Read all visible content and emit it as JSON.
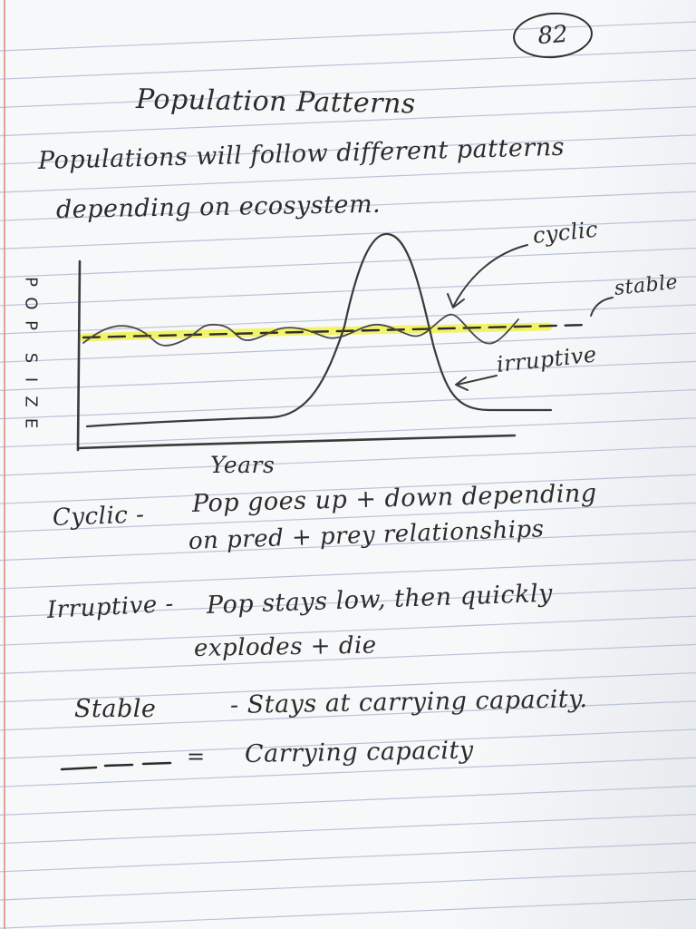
{
  "page_number": "82",
  "title": "Population Patterns",
  "intro": {
    "line1": "Populations will follow different patterns",
    "line2": "depending on ecosystem."
  },
  "graph": {
    "y_axis_letters": [
      "P",
      "O",
      "P",
      "S",
      "I",
      "Z",
      "E"
    ],
    "x_axis_label": "Years",
    "labels": {
      "cyclic": "cyclic",
      "stable": "stable",
      "irruptive": "irruptive"
    },
    "colors": {
      "highlighter": "#f2f25a",
      "ink": "#3a3a3a"
    }
  },
  "definitions": {
    "cyclic": {
      "term": "Cyclic -",
      "line1": "Pop goes up + down depending",
      "line2": "on pred + prey relationships"
    },
    "irruptive": {
      "term": "Irruptive -",
      "line1": "Pop stays low, then quickly",
      "line2": "explodes + die"
    },
    "stable": {
      "term": "Stable",
      "line1": "- Stays at carrying capacity."
    }
  },
  "legend": {
    "equals": "=",
    "text": "Carrying capacity"
  },
  "paper": {
    "line_color": "#b9c3d6",
    "margin_color": "#e08a8a"
  }
}
